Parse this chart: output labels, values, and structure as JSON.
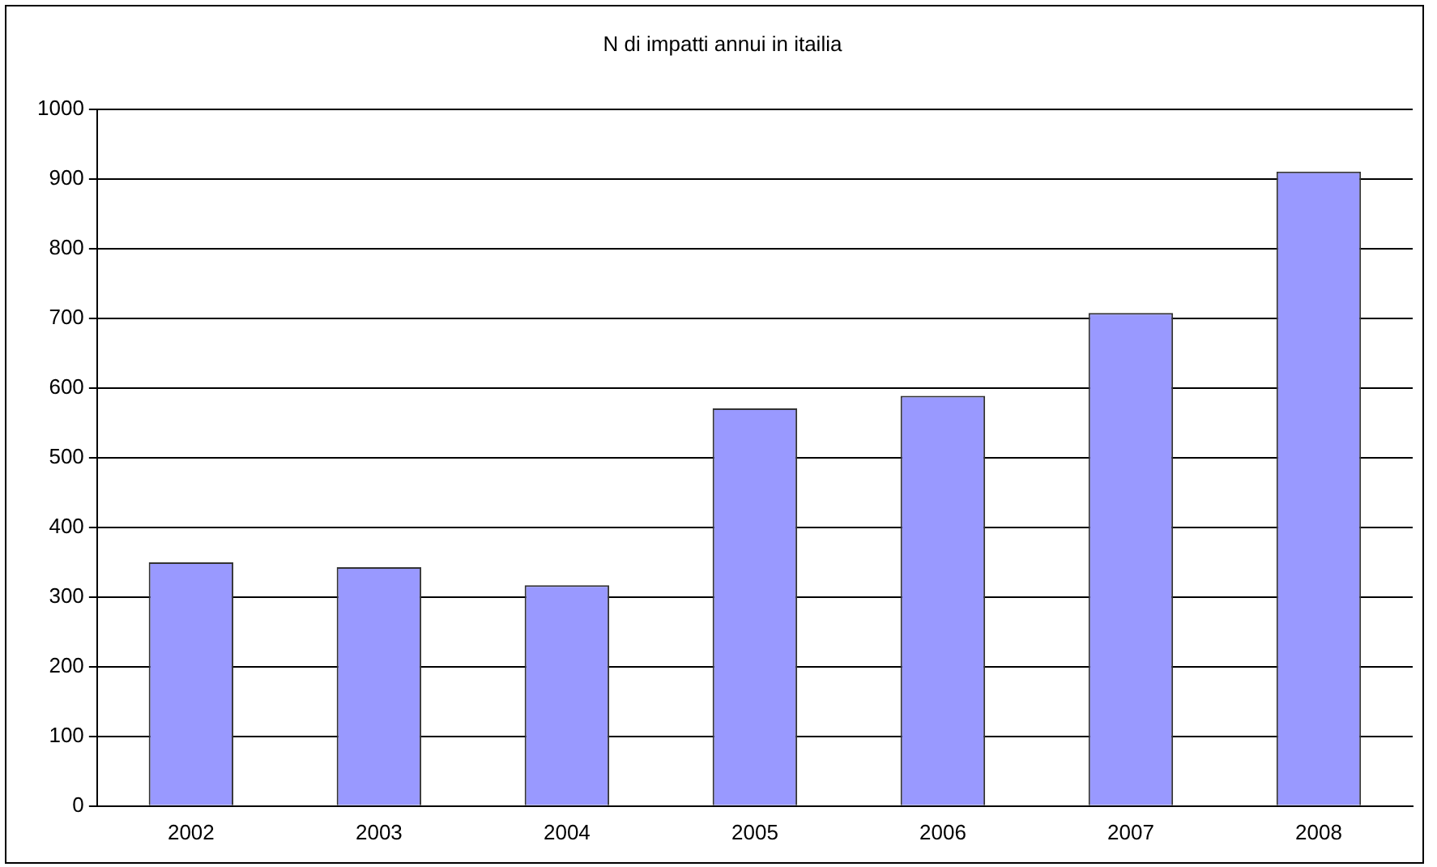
{
  "chart_data": {
    "type": "bar",
    "title": "N di impatti annui in itailia",
    "categories": [
      "2002",
      "2003",
      "2004",
      "2005",
      "2006",
      "2007",
      "2008"
    ],
    "values": [
      350,
      343,
      317,
      571,
      589,
      708,
      911
    ],
    "color": "#9999ff",
    "ylim": [
      0,
      1000
    ],
    "yticks": [
      0,
      100,
      200,
      300,
      400,
      500,
      600,
      700,
      800,
      900,
      1000
    ],
    "grid": "y",
    "legend": false
  }
}
